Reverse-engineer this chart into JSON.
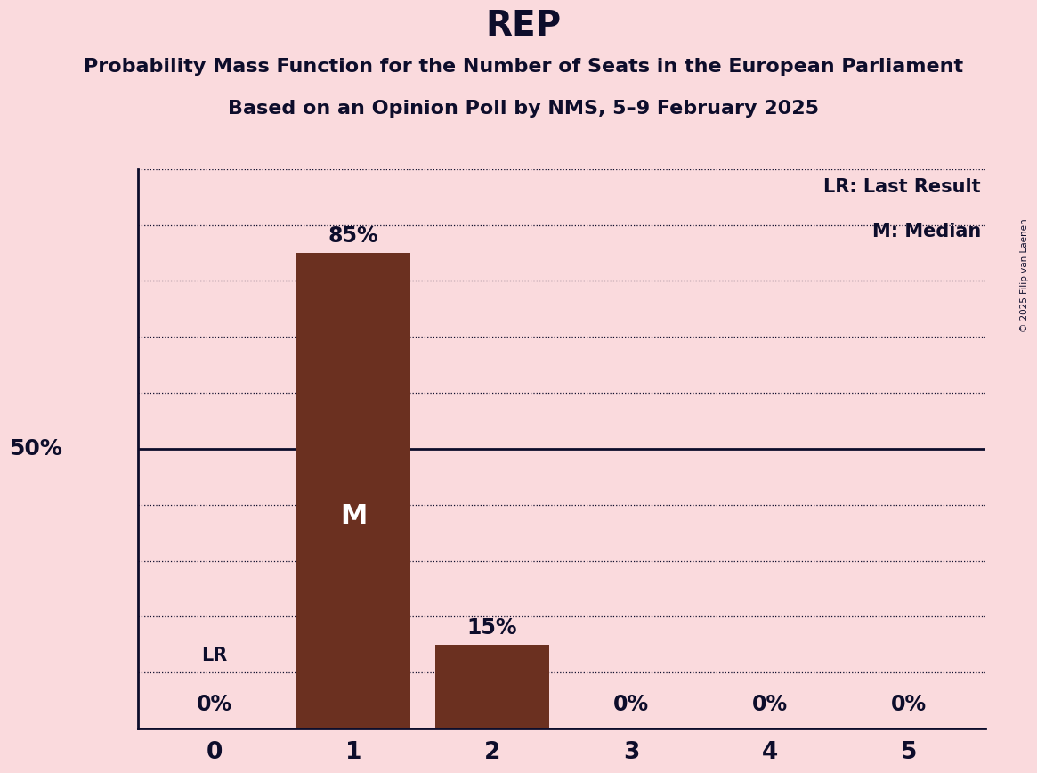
{
  "title": "REP",
  "subtitle1": "Probability Mass Function for the Number of Seats in the European Parliament",
  "subtitle2": "Based on an Opinion Poll by NMS, 5–9 February 2025",
  "copyright": "© 2025 Filip van Laenen",
  "categories": [
    0,
    1,
    2,
    3,
    4,
    5
  ],
  "values": [
    0,
    85,
    15,
    0,
    0,
    0
  ],
  "bar_color": "#6B3020",
  "background_color": "#FADADD",
  "yticks": [
    0,
    10,
    20,
    30,
    40,
    50,
    60,
    70,
    80,
    90,
    100
  ],
  "median_bar": 1,
  "last_result_bar": 0,
  "legend_lr": "LR: Last Result",
  "legend_m": "M: Median",
  "title_fontsize": 28,
  "subtitle_fontsize": 16,
  "bar_label_fontsize": 17,
  "axis_tick_fontsize": 19,
  "legend_fontsize": 15,
  "fifty_pct_label_fontsize": 18,
  "lr_label_fontsize": 15,
  "median_label_fontsize": 22,
  "text_color": "#0d0d2b"
}
